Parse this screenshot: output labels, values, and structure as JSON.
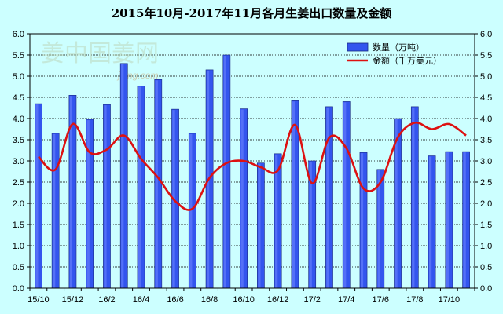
{
  "chart_data": {
    "type": "bar",
    "title": "2015年10月-2017年11月各月生姜出口数量及金额",
    "categories": [
      "15/10",
      "15/11",
      "15/12",
      "16/1",
      "16/2",
      "16/3",
      "16/4",
      "16/5",
      "16/6",
      "16/7",
      "16/8",
      "16/9",
      "16/10",
      "16/11",
      "16/12",
      "17/1",
      "17/2",
      "17/3",
      "17/4",
      "17/5",
      "17/6",
      "17/7",
      "17/8",
      "17/9",
      "17/10",
      "17/11"
    ],
    "x_tick_labels": [
      "15/10",
      "15/12",
      "16/2",
      "16/4",
      "16/6",
      "16/8",
      "16/10",
      "16/12",
      "17/2",
      "17/4",
      "17/6",
      "17/8",
      "17/10"
    ],
    "series": [
      {
        "name": "数量（万吨）",
        "kind": "bar",
        "color": "#3355ee",
        "values": [
          4.35,
          3.65,
          4.55,
          3.98,
          4.33,
          5.3,
          4.77,
          4.92,
          4.22,
          3.65,
          5.15,
          5.5,
          4.23,
          2.95,
          3.17,
          4.42,
          3.0,
          4.28,
          4.4,
          3.2,
          2.8,
          4.0,
          4.28,
          3.12,
          3.22,
          3.22
        ]
      },
      {
        "name": "金额（千万美元）",
        "kind": "line",
        "color": "#dd1111",
        "values": [
          3.1,
          2.8,
          3.87,
          3.2,
          3.27,
          3.6,
          3.05,
          2.6,
          2.05,
          1.87,
          2.6,
          2.95,
          3.0,
          2.85,
          2.78,
          3.85,
          2.47,
          3.55,
          3.3,
          2.35,
          2.5,
          3.55,
          3.9,
          3.75,
          3.87,
          3.6
        ]
      }
    ],
    "ylim": [
      0,
      6
    ],
    "yticks": [
      "0.0",
      "0.5",
      "1.0",
      "1.5",
      "2.0",
      "2.5",
      "3.0",
      "3.5",
      "4.0",
      "4.5",
      "5.0",
      "5.5",
      "6.0"
    ],
    "y2ticks": [
      "0.0",
      "0.5",
      "1.0",
      "1.5",
      "2.0",
      "2.5",
      "3.0",
      "3.5",
      "4.0",
      "4.5",
      "5.0",
      "5.5",
      "6.0"
    ],
    "grid": true,
    "legend_position": "top-right",
    "xlabel": "",
    "ylabel": ""
  },
  "watermark": {
    "text": "姜中国姜网",
    "subtext": "jiang.com"
  }
}
